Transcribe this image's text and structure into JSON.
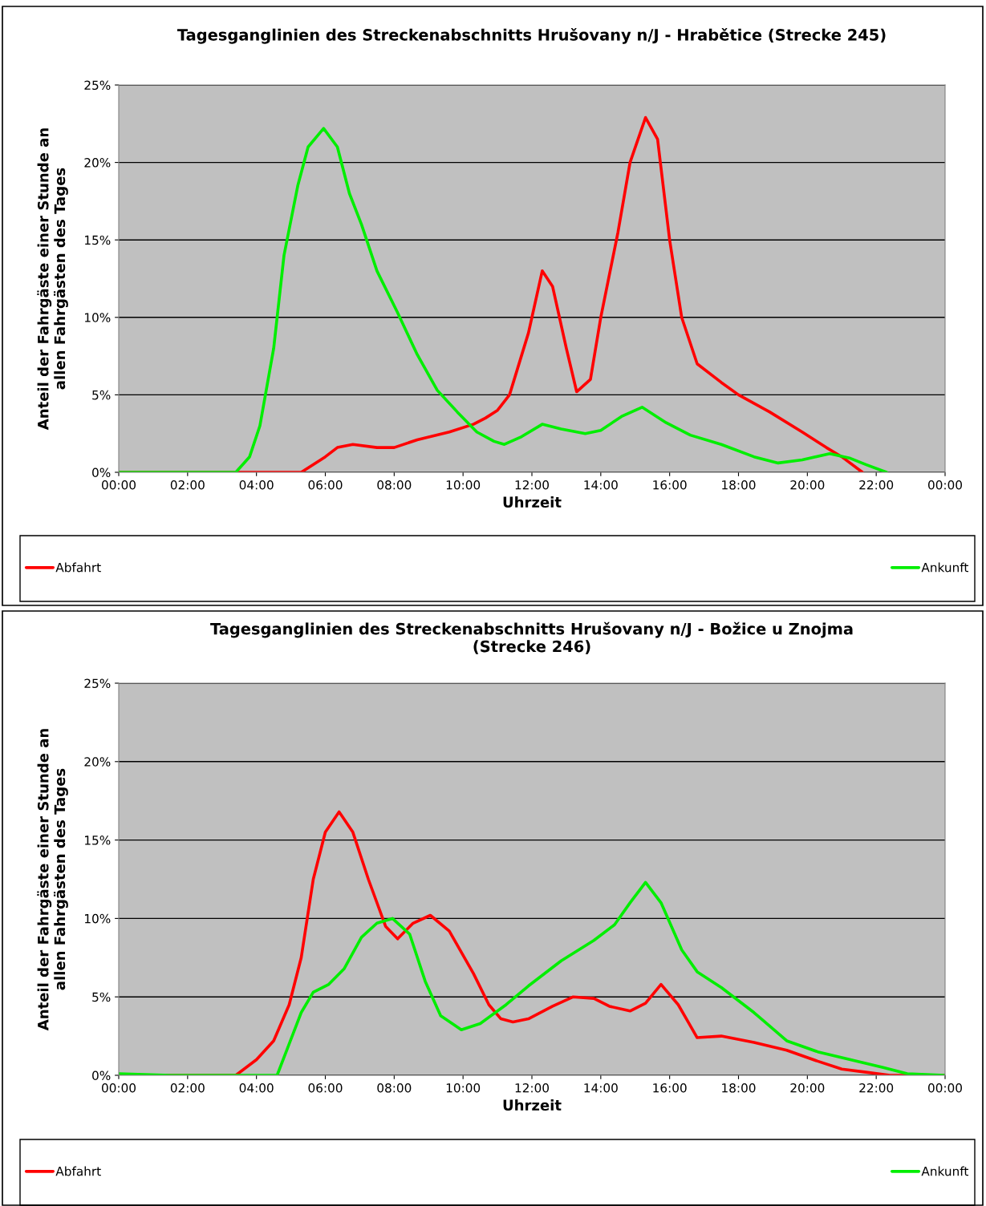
{
  "chart_data": [
    {
      "type": "line",
      "title": "Tagesganglinien des Streckenabschnitts Hrušovany n/J - Hrabětice (Strecke 245)",
      "xlabel": "Uhrzeit",
      "ylabel": "Anteil der Fahrgäste einer Stunde an\nallen Fahrgästen des Tages",
      "xlim": [
        0,
        24
      ],
      "xticks": [
        {
          "value": 0,
          "label": "00:00"
        },
        {
          "value": 2,
          "label": "02:00"
        },
        {
          "value": 4,
          "label": "04:00"
        },
        {
          "value": 6,
          "label": "06:00"
        },
        {
          "value": 8,
          "label": "08:00"
        },
        {
          "value": 10,
          "label": "10:00"
        },
        {
          "value": 12,
          "label": "12:00"
        },
        {
          "value": 14,
          "label": "14:00"
        },
        {
          "value": 16,
          "label": "16:00"
        },
        {
          "value": 18,
          "label": "18:00"
        },
        {
          "value": 20,
          "label": "20:00"
        },
        {
          "value": 22,
          "label": "22:00"
        },
        {
          "value": 24,
          "label": "00:00"
        }
      ],
      "ylim": [
        0,
        25
      ],
      "yticks": [
        {
          "value": 0,
          "label": "0%"
        },
        {
          "value": 5,
          "label": "5%"
        },
        {
          "value": 10,
          "label": "10%"
        },
        {
          "value": 15,
          "label": "15%"
        },
        {
          "value": 20,
          "label": "20%"
        },
        {
          "value": 25,
          "label": "25%"
        }
      ],
      "grid": "y",
      "legend": "bottom",
      "marker": "none",
      "line_style": "solid",
      "series": [
        {
          "name": "Abfahrt",
          "color": "#ff0000",
          "x": [
            0,
            3.5,
            5.3,
            6.0,
            6.35,
            6.8,
            7.5,
            8.0,
            8.67,
            9.6,
            10.3,
            10.65,
            11.0,
            11.35,
            11.9,
            12.3,
            12.6,
            13.0,
            13.3,
            13.7,
            14.0,
            14.5,
            14.85,
            15.3,
            15.65,
            16.0,
            16.35,
            16.8,
            17.5,
            18.0,
            18.9,
            19.85,
            20.55,
            21.0,
            21.6
          ],
          "values": [
            0,
            0,
            0,
            1.0,
            1.6,
            1.8,
            1.6,
            1.6,
            2.1,
            2.6,
            3.1,
            3.5,
            4.0,
            5.0,
            9.0,
            13.0,
            12.0,
            8.0,
            5.2,
            6.0,
            10.0,
            15.5,
            20.0,
            22.9,
            21.5,
            15.0,
            10.0,
            7.0,
            5.8,
            5.0,
            3.9,
            2.6,
            1.6,
            1.0,
            0
          ]
        },
        {
          "name": "Ankunft",
          "color": "#00ee00",
          "x": [
            0,
            3.4,
            3.8,
            4.1,
            4.5,
            4.8,
            5.2,
            5.5,
            5.95,
            6.35,
            6.7,
            7.05,
            7.5,
            8.1,
            8.67,
            9.25,
            9.83,
            10.4,
            10.9,
            11.2,
            11.7,
            12.3,
            12.85,
            13.55,
            14.0,
            14.6,
            15.2,
            15.9,
            16.6,
            17.5,
            18.45,
            19.15,
            19.85,
            20.65,
            21.25,
            21.7,
            22.3
          ],
          "values": [
            0,
            0,
            1.0,
            3.0,
            8.0,
            14.0,
            18.5,
            21.0,
            22.2,
            21.0,
            18.0,
            16.0,
            13.0,
            10.3,
            7.6,
            5.3,
            3.9,
            2.6,
            2.0,
            1.8,
            2.3,
            3.1,
            2.8,
            2.5,
            2.7,
            3.6,
            4.2,
            3.2,
            2.4,
            1.8,
            1.0,
            0.6,
            0.8,
            1.2,
            0.9,
            0.5,
            0
          ]
        }
      ]
    },
    {
      "type": "line",
      "title": "Tagesganglinien des Streckenabschnitts Hrušovany n/J - Božice u Znojma\n(Strecke 246)",
      "xlabel": "Uhrzeit",
      "ylabel": "Anteil der Fahrgäste einer Stunde an\nallen Fahrgästen des Tages",
      "xlim": [
        0,
        24
      ],
      "xticks": [
        {
          "value": 0,
          "label": "00:00"
        },
        {
          "value": 2,
          "label": "02:00"
        },
        {
          "value": 4,
          "label": "04:00"
        },
        {
          "value": 6,
          "label": "06:00"
        },
        {
          "value": 8,
          "label": "08:00"
        },
        {
          "value": 10,
          "label": "10:00"
        },
        {
          "value": 12,
          "label": "12:00"
        },
        {
          "value": 14,
          "label": "14:00"
        },
        {
          "value": 16,
          "label": "16:00"
        },
        {
          "value": 18,
          "label": "18:00"
        },
        {
          "value": 20,
          "label": "20:00"
        },
        {
          "value": 22,
          "label": "22:00"
        },
        {
          "value": 24,
          "label": "00:00"
        }
      ],
      "ylim": [
        0,
        25
      ],
      "yticks": [
        {
          "value": 0,
          "label": "0%"
        },
        {
          "value": 5,
          "label": "5%"
        },
        {
          "value": 10,
          "label": "10%"
        },
        {
          "value": 15,
          "label": "15%"
        },
        {
          "value": 20,
          "label": "20%"
        },
        {
          "value": 25,
          "label": "25%"
        }
      ],
      "grid": "y",
      "legend": "bottom",
      "marker": "none",
      "line_style": "solid",
      "series": [
        {
          "name": "Abfahrt",
          "color": "#ff0000",
          "x": [
            0,
            3.4,
            4.0,
            4.5,
            4.95,
            5.3,
            5.65,
            6.0,
            6.4,
            6.8,
            7.25,
            7.75,
            8.1,
            8.55,
            9.05,
            9.6,
            10.3,
            10.75,
            11.1,
            11.45,
            11.9,
            12.6,
            13.2,
            13.8,
            14.25,
            14.85,
            15.3,
            15.75,
            16.25,
            16.8,
            17.5,
            18.45,
            19.4,
            20.3,
            21.0,
            21.7,
            22.4,
            24
          ],
          "values": [
            0,
            0,
            1.0,
            2.2,
            4.5,
            7.5,
            12.5,
            15.5,
            16.8,
            15.5,
            12.5,
            9.5,
            8.7,
            9.7,
            10.2,
            9.2,
            6.5,
            4.5,
            3.6,
            3.4,
            3.6,
            4.4,
            5.0,
            4.9,
            4.4,
            4.1,
            4.6,
            5.8,
            4.5,
            2.4,
            2.5,
            2.1,
            1.6,
            0.9,
            0.4,
            0.2,
            0,
            0
          ]
        },
        {
          "name": "Ankunft",
          "color": "#00ee00",
          "x": [
            0,
            1.5,
            4.6,
            4.95,
            5.3,
            5.65,
            6.1,
            6.55,
            7.05,
            7.5,
            7.95,
            8.45,
            8.9,
            9.35,
            9.95,
            10.5,
            11.25,
            11.9,
            12.85,
            13.8,
            14.4,
            14.85,
            15.3,
            15.75,
            16.35,
            16.8,
            17.5,
            18.45,
            19.4,
            20.3,
            21.25,
            22.2,
            22.9,
            24
          ],
          "values": [
            0.1,
            0,
            0,
            2.0,
            4.0,
            5.3,
            5.8,
            6.8,
            8.8,
            9.7,
            10.0,
            9.0,
            6.0,
            3.8,
            2.9,
            3.3,
            4.5,
            5.7,
            7.3,
            8.6,
            9.6,
            11.0,
            12.3,
            11.0,
            8.0,
            6.6,
            5.6,
            4.0,
            2.2,
            1.5,
            1.0,
            0.5,
            0.1,
            0
          ]
        }
      ]
    }
  ]
}
